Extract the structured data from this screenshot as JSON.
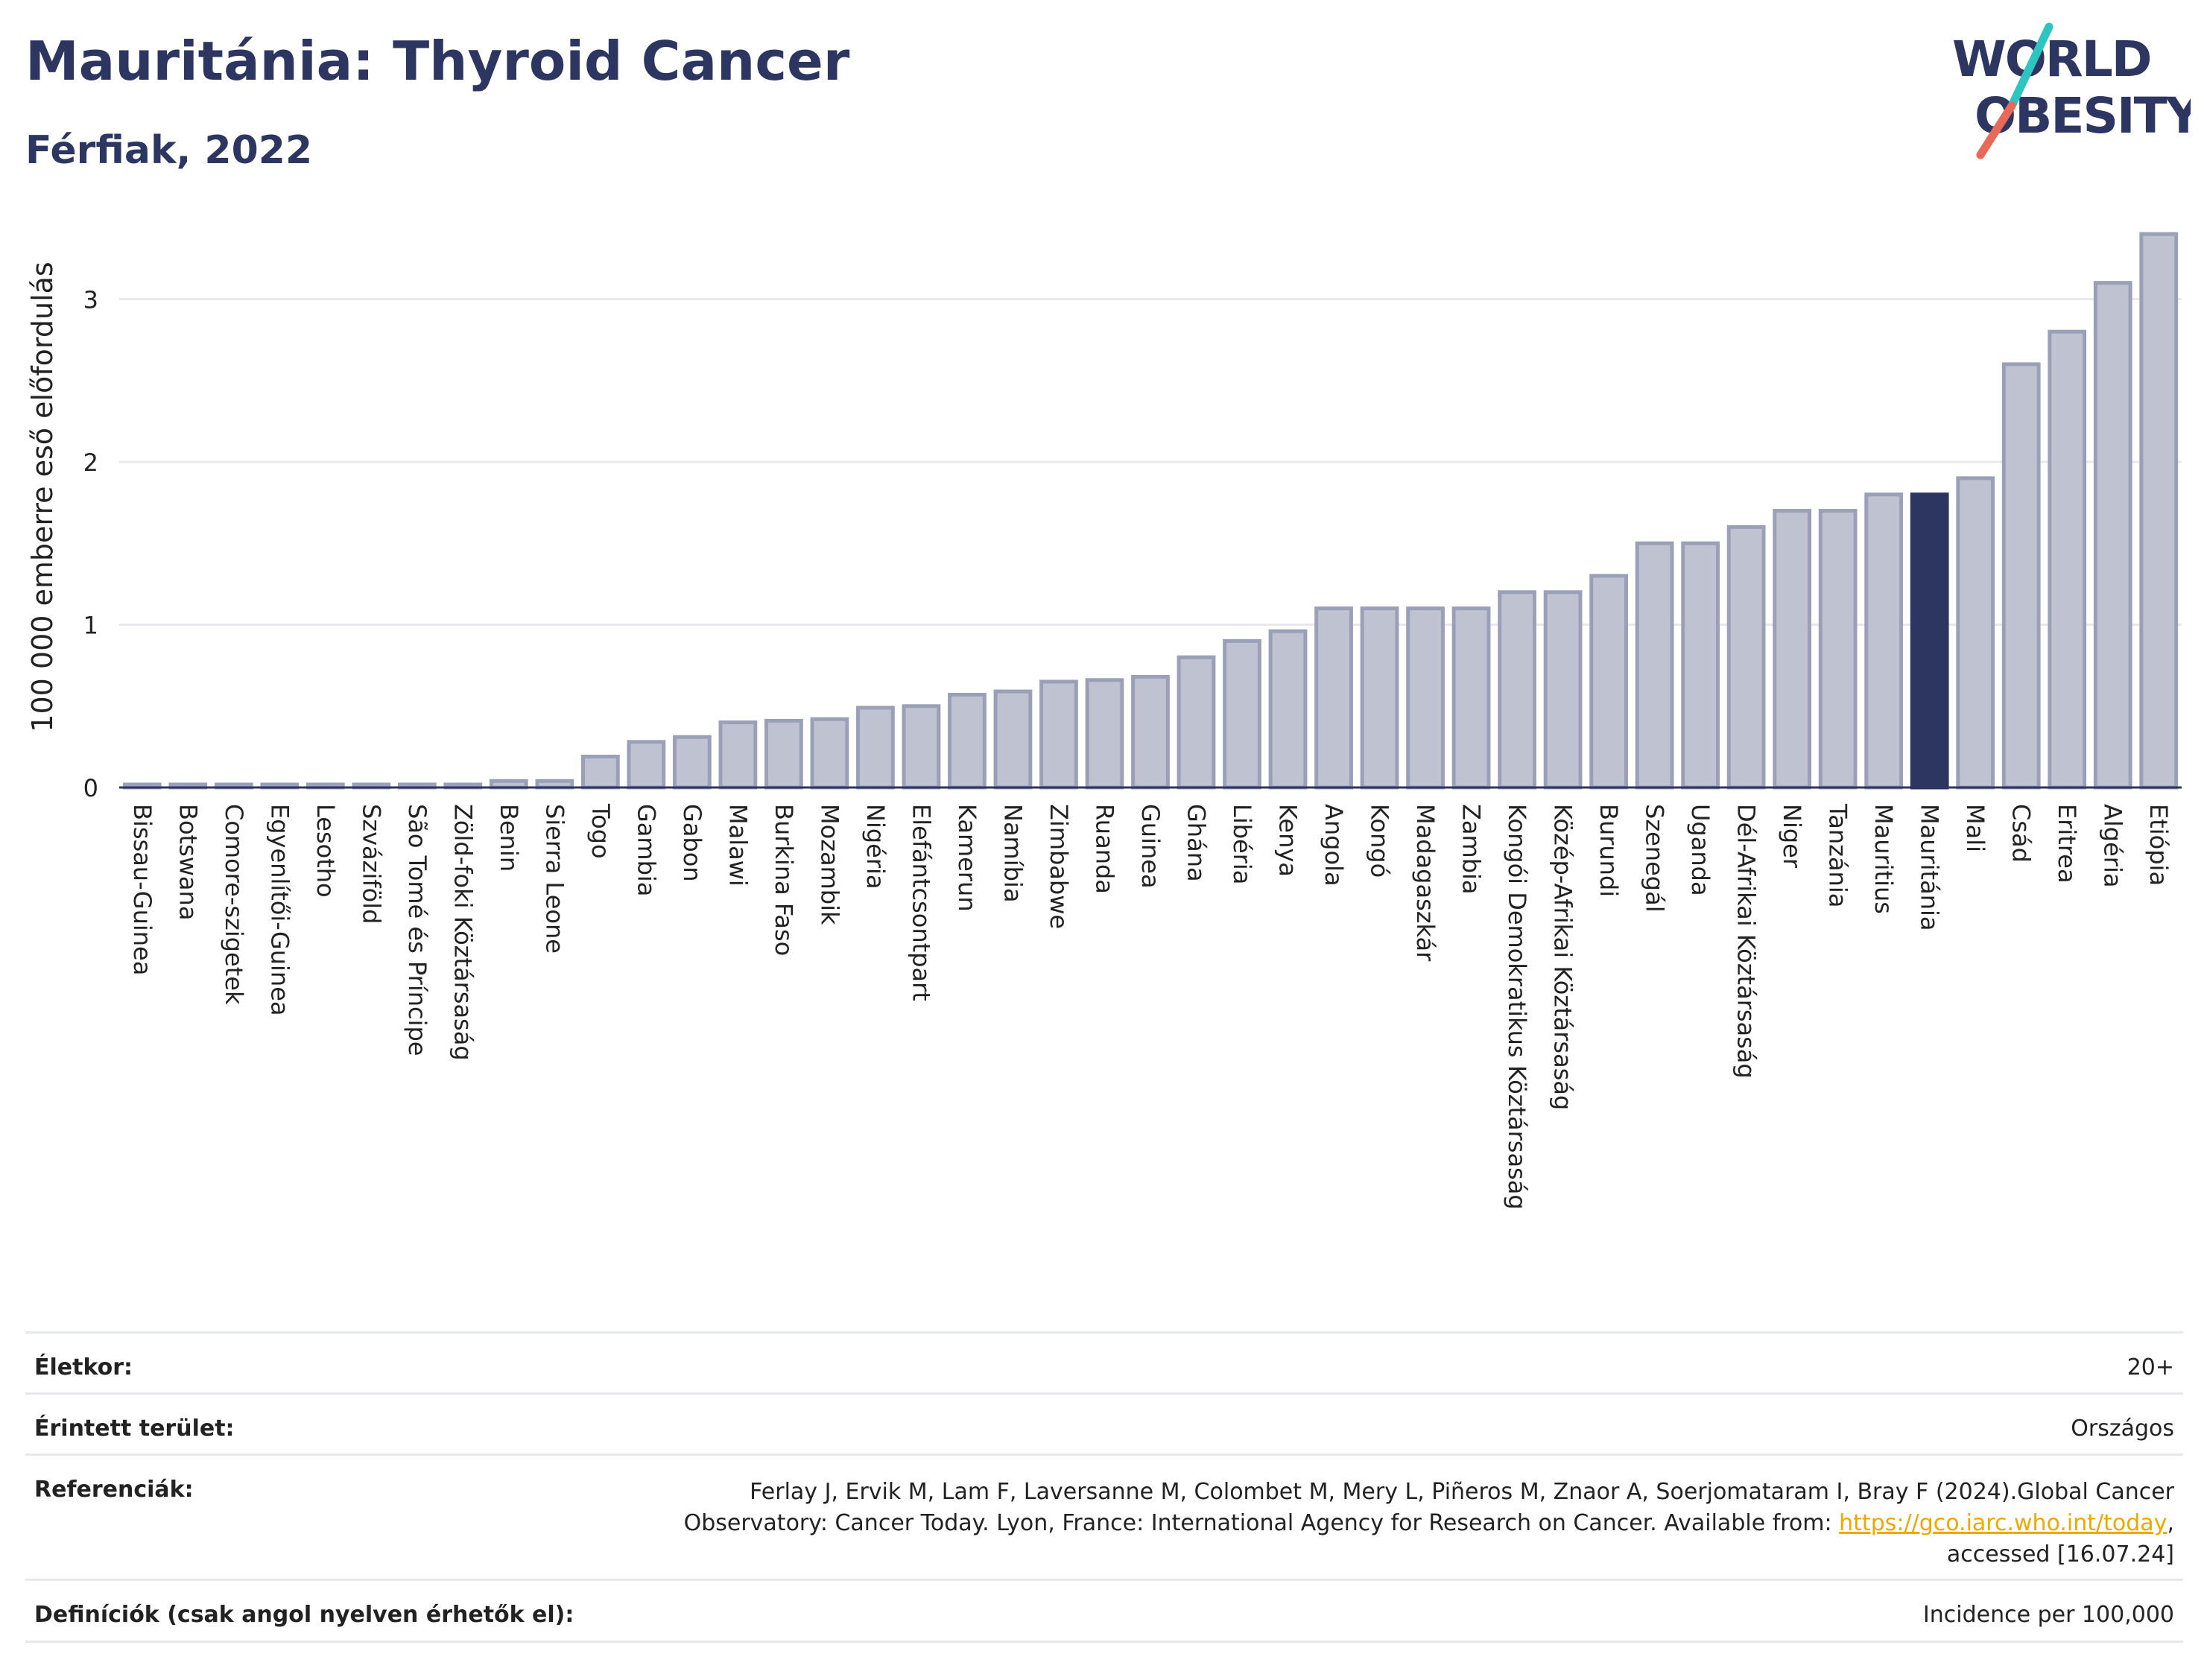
{
  "header": {
    "title": "Mauritánia: Thyroid Cancer",
    "subtitle": "Férfiak, 2022"
  },
  "logo": {
    "line1": "WORLD",
    "line2": "OBESITY"
  },
  "colors": {
    "bar_fill": "#bfc3d1",
    "bar_stroke": "#9aa0b8",
    "highlight": "#2d3561",
    "grid": "#e8e9ee",
    "logo_teal": "#2ec4c0",
    "logo_red": "#e8685a"
  },
  "chart_data": {
    "type": "bar",
    "ylabel": "100 000 emberre eső előfordulás",
    "ylim": [
      0,
      3.45
    ],
    "yticks": [
      0,
      1,
      2,
      3
    ],
    "grid": true,
    "highlight": "Mauritánia",
    "categories": [
      "Bissau-Guinea",
      "Botswana",
      "Comore-szigetek",
      "Egyenlítői-Guinea",
      "Lesotho",
      "Szváziföld",
      "São Tomé és Príncipe",
      "Zöld-foki Köztársaság",
      "Benin",
      "Sierra Leone",
      "Togo",
      "Gambia",
      "Gabon",
      "Malawi",
      "Burkina Faso",
      "Mozambik",
      "Nigéria",
      "Elefántcsontpart",
      "Kamerun",
      "Namíbia",
      "Zimbabwe",
      "Ruanda",
      "Guinea",
      "Ghána",
      "Libéria",
      "Kenya",
      "Angola",
      "Kongó",
      "Madagaszkár",
      "Zambia",
      "Kongói Demokratikus Köztársaság",
      "Közép-Afrikai Köztársaság",
      "Burundi",
      "Szenegál",
      "Uganda",
      "Dél-Afrikai Köztársaság",
      "Niger",
      "Tanzánia",
      "Mauritius",
      "Mauritánia",
      "Mali",
      "Csád",
      "Eritrea",
      "Algéria",
      "Etiópia"
    ],
    "values": [
      0,
      0,
      0,
      0,
      0,
      0,
      0,
      0,
      0.04,
      0.04,
      0.19,
      0.28,
      0.31,
      0.4,
      0.41,
      0.42,
      0.49,
      0.5,
      0.57,
      0.59,
      0.65,
      0.66,
      0.68,
      0.8,
      0.9,
      0.96,
      1.1,
      1.1,
      1.1,
      1.1,
      1.2,
      1.2,
      1.3,
      1.5,
      1.5,
      1.6,
      1.7,
      1.7,
      1.8,
      1.8,
      1.9,
      2.6,
      2.8,
      3.1,
      3.4
    ]
  },
  "meta": {
    "age_label": "Életkor:",
    "age_value": "20+",
    "area_label": "Érintett terület:",
    "area_value": "Országos",
    "ref_label": "Referenciák:",
    "ref_line1": "Ferlay J, Ervik M, Lam F, Laversanne M, Colombet M, Mery L, Piñeros M, Znaor A, Soerjomataram I, Bray F (2024).Global Cancer",
    "ref_line2": "Observatory: Cancer Today. Lyon, France: International Agency for Research on Cancer. Available from: ",
    "ref_link": "https://gco.iarc.who.int/today",
    "ref_line2_end": ",",
    "ref_line3": "accessed [16.07.24]",
    "def_label": "Definíciók (csak angol nyelven érhetők el):",
    "def_value": "Incidence per 100,000"
  }
}
